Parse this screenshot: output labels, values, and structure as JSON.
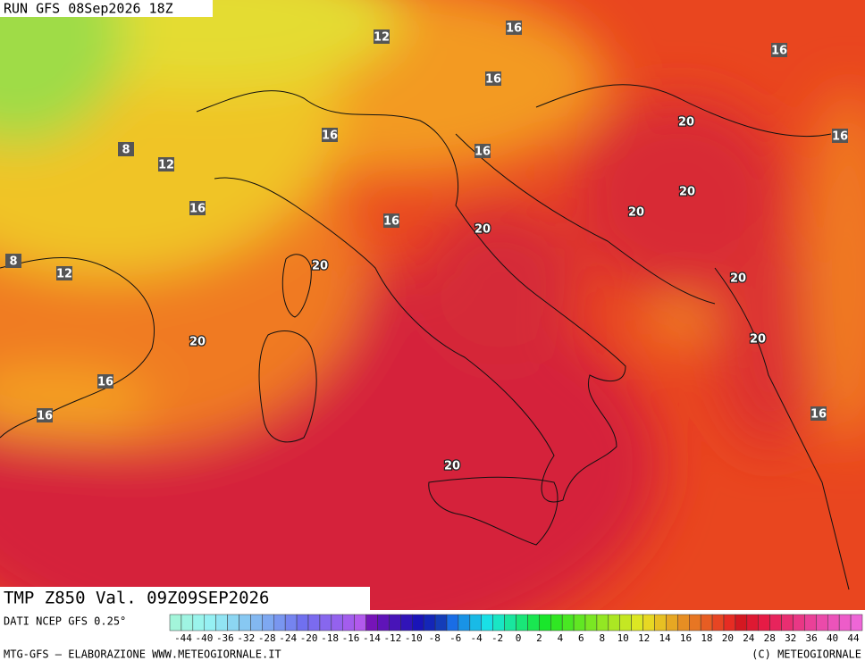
{
  "header": {
    "run": "RUN GFS 08Sep2026 18Z"
  },
  "contour_labels": [
    "12",
    "16",
    "16",
    "16",
    "20",
    "16",
    "16",
    "8",
    "12",
    "16",
    "20",
    "20",
    "16",
    "16",
    "20",
    "20",
    "8",
    "12",
    "20",
    "20",
    "20",
    "16",
    "16",
    "16",
    "20"
  ],
  "legend": {
    "title": "TMP Z850 Val. 09Z09SEP2026",
    "source": "DATI NCEP GFS 0.25°",
    "colorbar_labels": [
      -44,
      -40,
      -36,
      -32,
      -28,
      -24,
      -20,
      -18,
      -16,
      -14,
      -12,
      -10,
      -8,
      -6,
      -4,
      -2,
      0,
      2,
      4,
      6,
      8,
      10,
      12,
      14,
      16,
      18,
      20,
      24,
      28,
      32,
      36,
      40,
      44
    ]
  },
  "footer": {
    "left": "MTG-GFS — ELABORAZIONE WWW.METEOGIORNALE.IT",
    "right": "(C) METEOGIORNALE"
  }
}
